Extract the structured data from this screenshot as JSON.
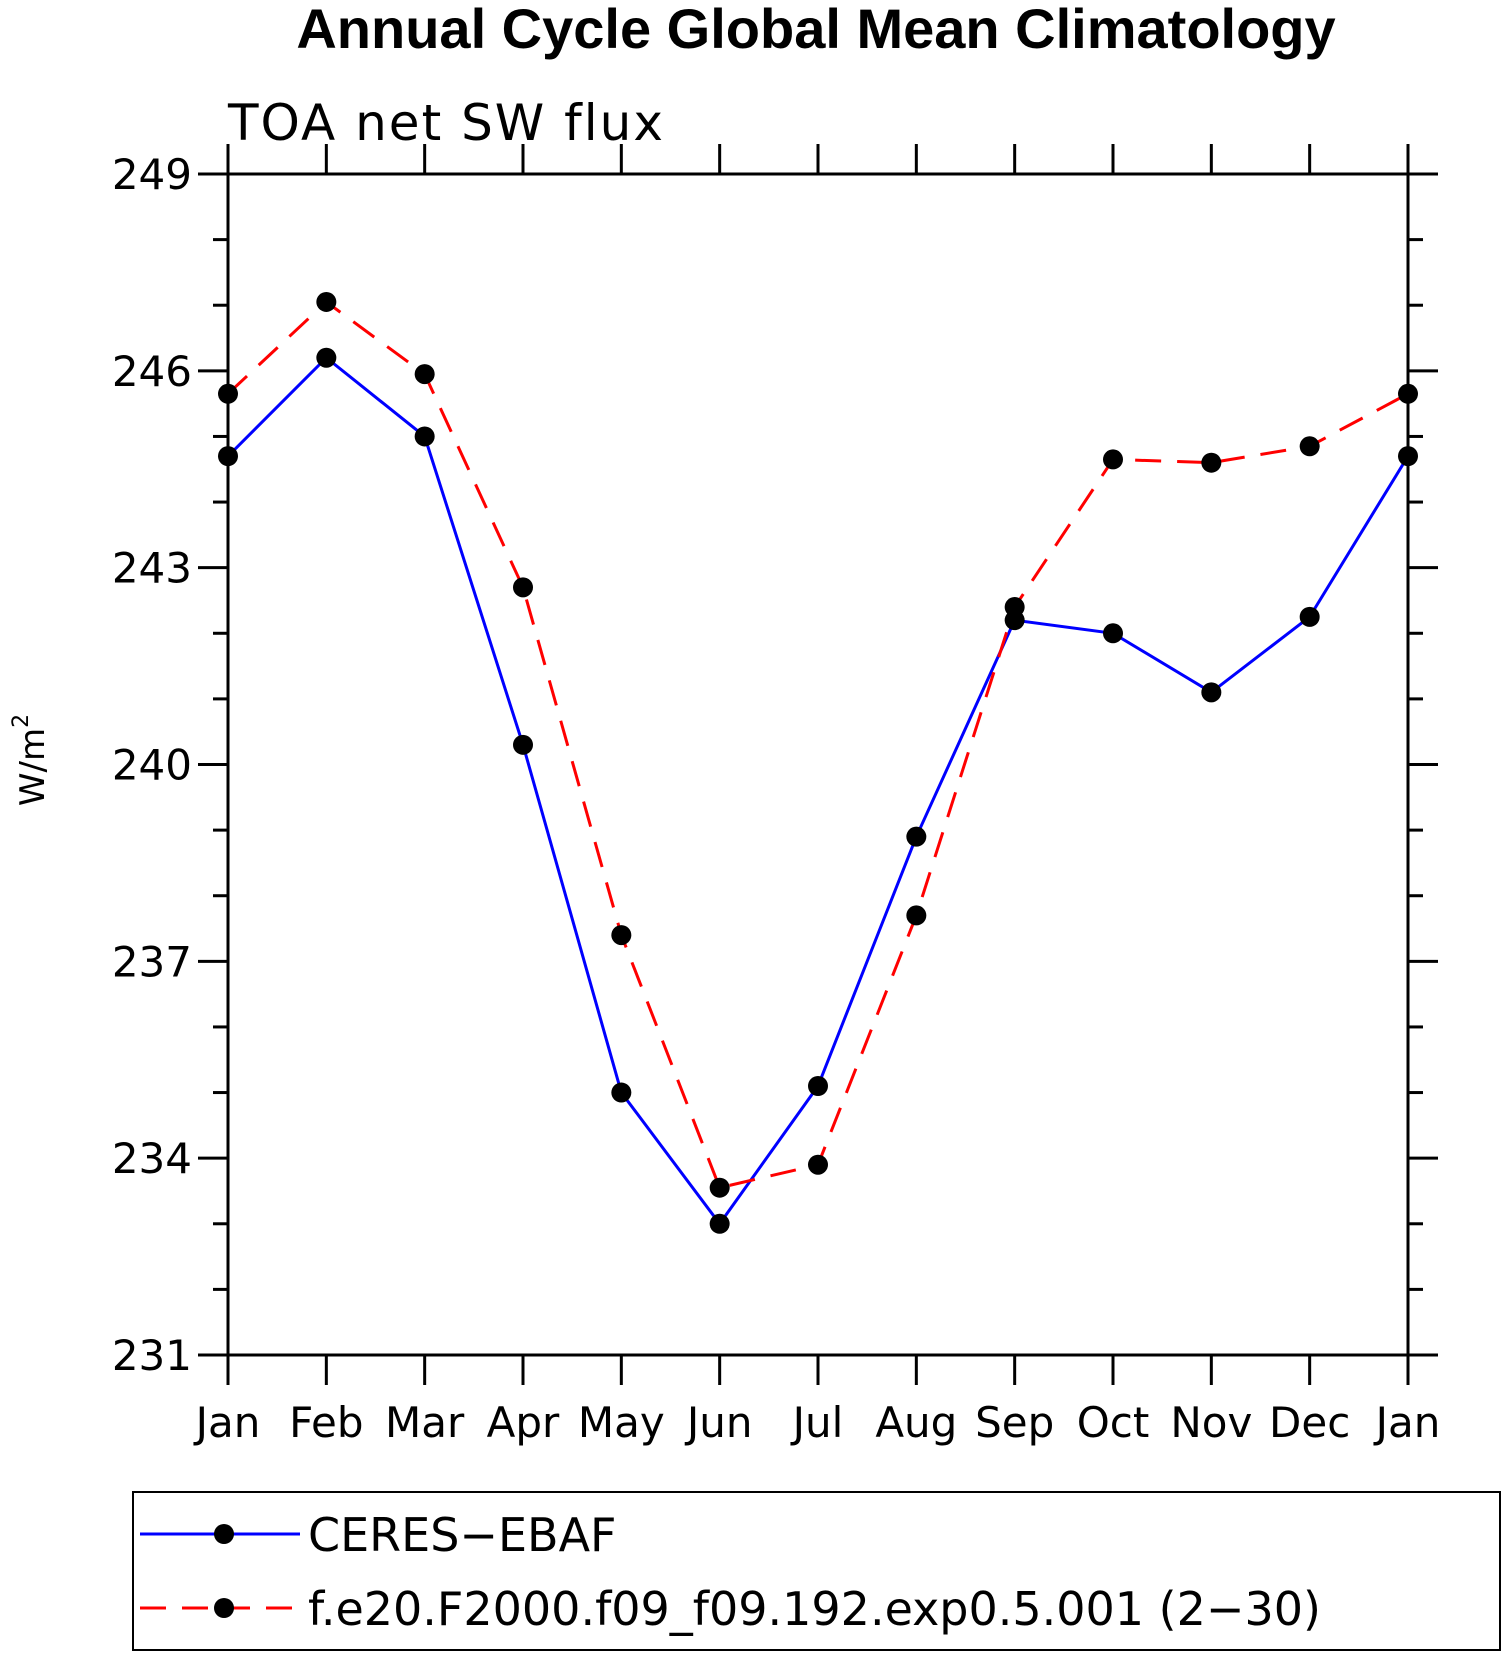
{
  "chart_data": {
    "type": "line",
    "title": "Annual Cycle Global Mean Climatology",
    "subtitle": "TOA net SW flux",
    "ylabel_base": "W/m",
    "ylabel_sup": "2",
    "categories": [
      "Jan",
      "Feb",
      "Mar",
      "Apr",
      "May",
      "Jun",
      "Jul",
      "Aug",
      "Sep",
      "Oct",
      "Nov",
      "Dec",
      "Jan"
    ],
    "ylim": [
      231,
      249
    ],
    "yticks": [
      231,
      234,
      237,
      240,
      243,
      246,
      249
    ],
    "grid": false,
    "legend_placement": "bottom",
    "series": [
      {
        "name": "CERES−EBAF",
        "color": "#0000ff",
        "dash": "solid",
        "values": [
          244.7,
          246.2,
          245.0,
          240.3,
          235.0,
          233.0,
          235.1,
          238.9,
          242.2,
          242.0,
          241.1,
          242.25,
          244.7
        ]
      },
      {
        "name": "f.e20.F2000.f09_f09.192.exp0.5.001 (2−30)",
        "color": "#ff0000",
        "dash": "dashed",
        "values": [
          245.65,
          247.05,
          245.95,
          242.7,
          237.4,
          233.55,
          233.9,
          237.7,
          242.4,
          244.65,
          244.6,
          244.85,
          245.65
        ]
      }
    ]
  }
}
